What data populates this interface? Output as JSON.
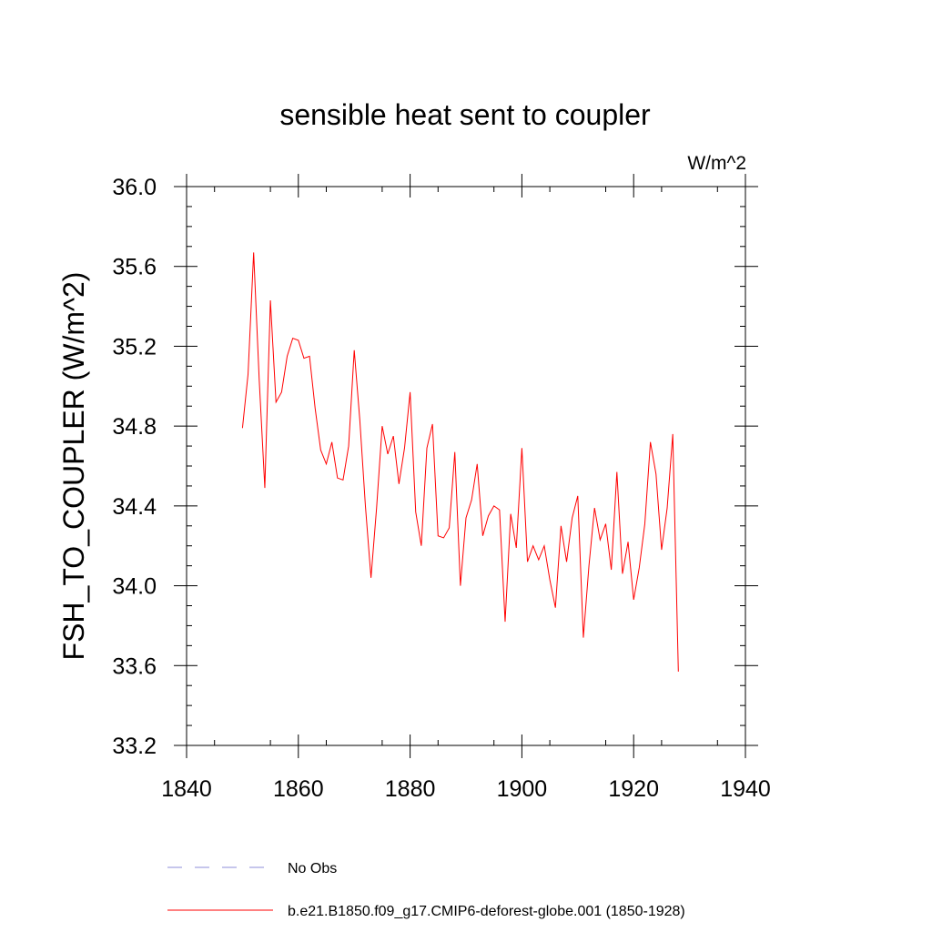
{
  "chart_data": {
    "type": "line",
    "title": "sensible heat sent to coupler",
    "units": "W/m^2",
    "ylabel": "FSH_TO_COUPLER  (W/m^2)",
    "xlabel": "",
    "xlim": [
      1840,
      1940
    ],
    "ylim": [
      33.2,
      36.0
    ],
    "xticks": [
      "1840",
      "1860",
      "1880",
      "1900",
      "1920",
      "1940"
    ],
    "yticks": [
      "33.2",
      "33.6",
      "34.0",
      "34.4",
      "34.8",
      "35.2",
      "35.6",
      "36.0"
    ],
    "grid": false,
    "legend": [
      {
        "label": "No Obs",
        "style": "dashed",
        "color": "#8c8cd9"
      },
      {
        "label": "b.e21.B1850.f09_g17.CMIP6-deforest-globe.001 (1850-1928)",
        "style": "solid",
        "color": "#ff0000"
      }
    ],
    "series": [
      {
        "name": "b.e21.B1850.f09_g17.CMIP6-deforest-globe.001 (1850-1928)",
        "color": "#ff0000",
        "x": [
          1850,
          1851,
          1852,
          1853,
          1854,
          1855,
          1856,
          1857,
          1858,
          1859,
          1860,
          1861,
          1862,
          1863,
          1864,
          1865,
          1866,
          1867,
          1868,
          1869,
          1870,
          1871,
          1872,
          1873,
          1874,
          1875,
          1876,
          1877,
          1878,
          1879,
          1880,
          1881,
          1882,
          1883,
          1884,
          1885,
          1886,
          1887,
          1888,
          1889,
          1890,
          1891,
          1892,
          1893,
          1894,
          1895,
          1896,
          1897,
          1898,
          1899,
          1900,
          1901,
          1902,
          1903,
          1904,
          1905,
          1906,
          1907,
          1908,
          1909,
          1910,
          1911,
          1912,
          1913,
          1914,
          1915,
          1916,
          1917,
          1918,
          1919,
          1920,
          1921,
          1922,
          1923,
          1924,
          1925,
          1926,
          1927,
          1928
        ],
        "values": [
          34.79,
          35.06,
          35.67,
          35.03,
          34.49,
          35.43,
          34.92,
          34.97,
          35.15,
          35.24,
          35.23,
          35.14,
          35.15,
          34.89,
          34.68,
          34.61,
          34.72,
          34.54,
          34.53,
          34.7,
          35.18,
          34.83,
          34.4,
          34.04,
          34.39,
          34.8,
          34.66,
          34.75,
          34.51,
          34.69,
          34.97,
          34.37,
          34.2,
          34.69,
          34.81,
          34.25,
          34.24,
          34.29,
          34.67,
          34.0,
          34.34,
          34.43,
          34.61,
          34.25,
          34.35,
          34.4,
          34.38,
          33.82,
          34.36,
          34.19,
          34.69,
          34.12,
          34.2,
          34.13,
          34.2,
          34.03,
          33.89,
          34.3,
          34.12,
          34.34,
          34.45,
          33.74,
          34.1,
          34.39,
          34.23,
          34.31,
          34.08,
          34.57,
          34.06,
          34.22,
          33.93,
          34.09,
          34.31,
          34.72,
          34.56,
          34.18,
          34.39,
          34.76,
          33.57
        ]
      }
    ]
  }
}
